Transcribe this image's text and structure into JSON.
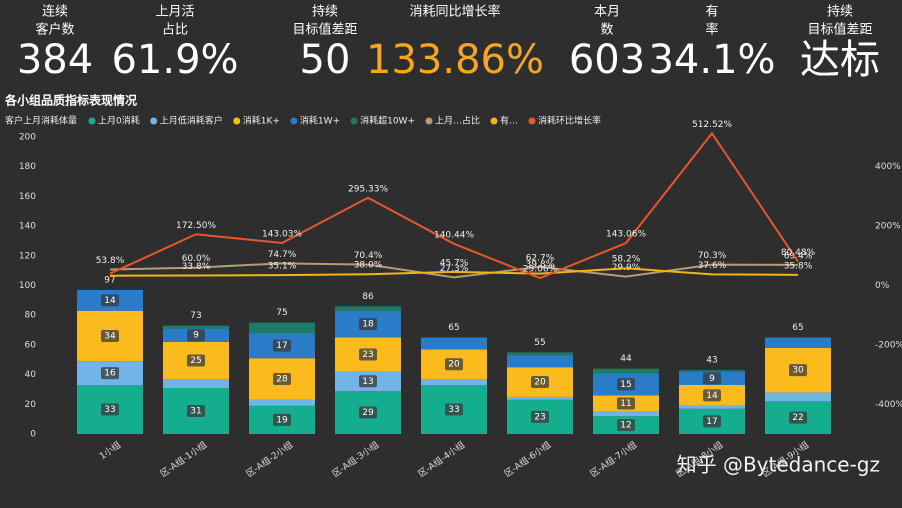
{
  "kpis": [
    {
      "label": [
        "连续",
        "客户数"
      ],
      "value": "384"
    },
    {
      "label": [
        "上月活",
        "占比"
      ],
      "value": "61.9%"
    },
    {
      "label": [
        "持续",
        "目标值差距"
      ],
      "value": "50"
    },
    {
      "label": [
        "消耗同比增长率"
      ],
      "value": "133.86%",
      "color": "#f5a623"
    },
    {
      "label": [
        "本月",
        "数"
      ],
      "value": "603"
    },
    {
      "label": [
        "有",
        "率"
      ],
      "value": "34.1%"
    },
    {
      "label": [
        "持续",
        "目标值差距"
      ],
      "value": "达标"
    }
  ],
  "watermark": "知乎 @Bytedance-gz",
  "chart_data": {
    "type": "bar",
    "title": "各小组品质指标表现情况",
    "legend_title": "客户上月消耗体量",
    "categories": [
      "1小组",
      "区-A组-1小组",
      "区-A组-2小组",
      "区-A组-3小组",
      "区-A组-4小组",
      "区-A组-6小组",
      "区-A组-7小组",
      "区-A组-8小组",
      "区-A组-9小组"
    ],
    "series": [
      {
        "name": "上月0消耗",
        "color": "#14ad8e",
        "values": [
          33,
          31,
          19,
          29,
          33,
          23,
          12,
          17,
          22
        ]
      },
      {
        "name": "上月低消耗客户",
        "color": "#72b4e6",
        "values": [
          16,
          6,
          4,
          13,
          4,
          2,
          3,
          2,
          6
        ]
      },
      {
        "name": "消耗1K+",
        "color": "#fbbb1d",
        "values": [
          34,
          25,
          28,
          23,
          20,
          20,
          11,
          14,
          30
        ]
      },
      {
        "name": "消耗1W+",
        "color": "#2b7cc8",
        "values": [
          14,
          9,
          17,
          18,
          8,
          8,
          15,
          9,
          7
        ]
      },
      {
        "name": "消耗超10W+",
        "color": "#1b7a68",
        "values": [
          0,
          2,
          7,
          3,
          0,
          2,
          3,
          1,
          0
        ]
      },
      {
        "name": "上月…占比",
        "color": "#b89a74",
        "axis": "y2",
        "line": true,
        "values": [
          53.8,
          60.0,
          74.7,
          70.4,
          27.3,
          62.7,
          29.9,
          70.3,
          69.4
        ],
        "value_labels": [
          "53.8%",
          "60.0%",
          "74.7%",
          "70.4%",
          "27.3%",
          "62.7%",
          "29.9%",
          "70.3%",
          "69.4%"
        ]
      },
      {
        "name": "有…",
        "color": "#f2b516",
        "axis": "y2",
        "line": true,
        "values": [
          33,
          33.8,
          35.1,
          38.0,
          45.7,
          39.8,
          58.2,
          37.6,
          35.8
        ],
        "value_labels": [
          null,
          "33.8%",
          "35.1%",
          "38.0%",
          "45.7%",
          "39.8%",
          "58.2%",
          "37.6%",
          "35.8%"
        ]
      },
      {
        "name": "消耗环比增长率",
        "color": "#e8572a",
        "axis": "y2",
        "line": true,
        "values": [
          40,
          172.5,
          143.03,
          295.33,
          140.44,
          25.06,
          143.06,
          512.52,
          80.48
        ],
        "value_labels": [
          null,
          "172.50%",
          "143.03%",
          "295.33%",
          "140.44%",
          "25.06%",
          "143.06%",
          "512.52%",
          "80.48%"
        ]
      }
    ],
    "totals": [
      97,
      73,
      75,
      86,
      65,
      55,
      44,
      43,
      65
    ],
    "ylim": [
      0,
      200
    ],
    "yticks": [
      0,
      20,
      40,
      60,
      80,
      100,
      120,
      140,
      160,
      180,
      200
    ],
    "y2lim": [
      -500,
      500
    ],
    "y2ticks": [
      {
        "value": 400,
        "label": "400%"
      },
      {
        "value": 200,
        "label": "200%"
      },
      {
        "value": 0,
        "label": "0%"
      },
      {
        "value": -200,
        "label": "-200%"
      },
      {
        "value": -400,
        "label": "-400%"
      }
    ]
  }
}
